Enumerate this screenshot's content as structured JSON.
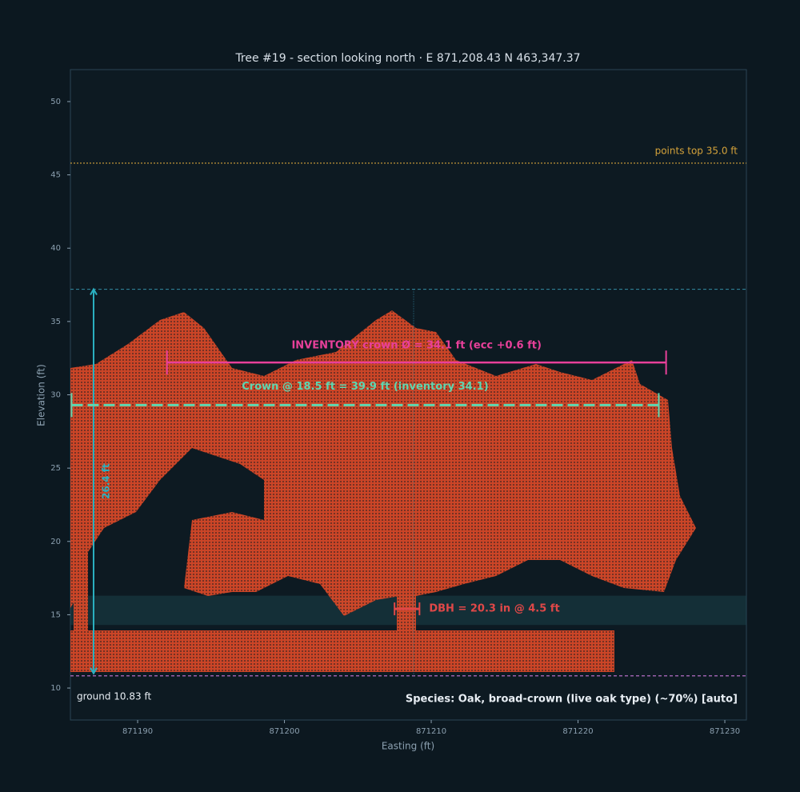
{
  "chart_data": {
    "type": "scatter",
    "title": "Tree #19 - section looking north · E 871,208.43  N 463,347.37",
    "x_label": "Easting (ft)",
    "y_label": "Elevation (ft)",
    "xlim": [
      871185.42,
      871231.47
    ],
    "ylim": [
      7.82,
      52.18
    ],
    "xticks": [
      871190,
      871200,
      871210,
      871220,
      871230
    ],
    "yticks": [
      10,
      15,
      20,
      25,
      30,
      35,
      40,
      45,
      50
    ],
    "ground": {
      "y": 10.83,
      "label": "ground  10.83 ft",
      "color": "#c878d8"
    },
    "points_top": {
      "y": 45.8,
      "label": "points top 35.0 ft",
      "color": "#d4a23a"
    },
    "top_line": {
      "y": 37.2,
      "x": 871208.8,
      "color": "#2f7f95"
    },
    "height_arrow": {
      "x": 871187,
      "y": [
        11,
        37.2
      ],
      "label": "26.4 ft",
      "color": "#2ab0c0"
    },
    "inventory": {
      "y": 32.2,
      "x": [
        871192,
        871226
      ],
      "label": "INVENTORY crown Ø = 34.1 ft  (ecc +0.6 ft)",
      "color": "#e8409a"
    },
    "crown": {
      "y": 29.3,
      "x": [
        871185.5,
        871225.5
      ],
      "label": "Crown @ 18.5 ft = 39.9 ft  (inventory 34.1)",
      "color": "#5ed6b0"
    },
    "dbh": {
      "y": 15.4,
      "x": [
        871207.5,
        871209.2
      ],
      "label": "DBH = 20.3 in @ 4.5 ft",
      "color": "#e04848"
    },
    "dbh_band": [
      14.3,
      16.3
    ],
    "species": "Species: Oak, broad-crown (live oak type) (~70%) [auto]"
  }
}
